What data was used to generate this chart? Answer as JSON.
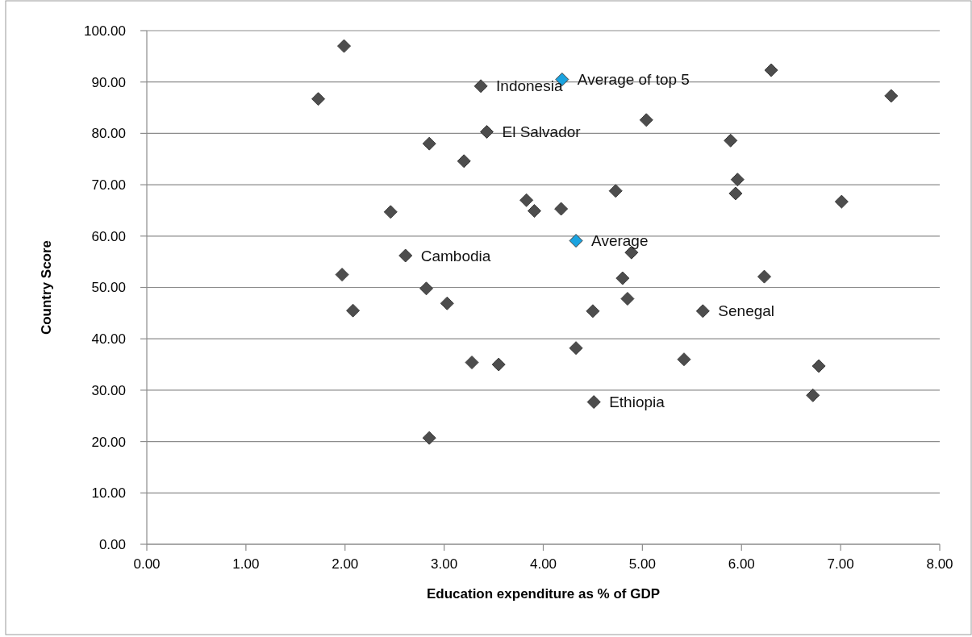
{
  "chart_data": {
    "type": "scatter",
    "xlabel": "Education expenditure as % of GDP",
    "ylabel": "Country Score",
    "xlim": [
      0,
      8
    ],
    "ylim": [
      0,
      100
    ],
    "xticks": [
      {
        "value": 0,
        "label": "0.00"
      },
      {
        "value": 1,
        "label": "1.00"
      },
      {
        "value": 2,
        "label": "2.00"
      },
      {
        "value": 3,
        "label": "3.00"
      },
      {
        "value": 4,
        "label": "4.00"
      },
      {
        "value": 5,
        "label": "5.00"
      },
      {
        "value": 6,
        "label": "6.00"
      },
      {
        "value": 7,
        "label": "7.00"
      },
      {
        "value": 8,
        "label": "8.00"
      }
    ],
    "yticks": [
      {
        "value": 0,
        "label": "0.00"
      },
      {
        "value": 10,
        "label": "10.00"
      },
      {
        "value": 20,
        "label": "20.00"
      },
      {
        "value": 30,
        "label": "30.00"
      },
      {
        "value": 40,
        "label": "40.00"
      },
      {
        "value": 50,
        "label": "50.00"
      },
      {
        "value": 60,
        "label": "60.00"
      },
      {
        "value": 70,
        "label": "70.00"
      },
      {
        "value": 80,
        "label": "80.00"
      },
      {
        "value": 90,
        "label": "90.00"
      },
      {
        "value": 100,
        "label": "100.00"
      }
    ],
    "grid": "y",
    "marker": "diamond",
    "series": [
      {
        "color": "#4d4d4d",
        "x": [
          1.73,
          1.99,
          1.97,
          2.08,
          2.46,
          2.61,
          2.85,
          2.82,
          2.85,
          3.03,
          3.2,
          3.28,
          3.37,
          3.43,
          3.55,
          3.83,
          3.91,
          4.18,
          4.33,
          4.5,
          4.51,
          4.73,
          4.8,
          4.85,
          4.89,
          5.04,
          5.42,
          5.61,
          5.89,
          5.96,
          5.94,
          6.23,
          6.3,
          6.72,
          6.78,
          7.01,
          7.51
        ],
        "values": [
          86.7,
          97.0,
          52.5,
          45.5,
          64.7,
          56.2,
          78.0,
          49.8,
          20.7,
          46.9,
          74.6,
          35.4,
          89.2,
          80.3,
          35.0,
          67.0,
          64.9,
          65.3,
          38.2,
          45.4,
          27.7,
          68.8,
          51.8,
          47.8,
          56.8,
          82.6,
          36.0,
          45.4,
          78.6,
          71.0,
          68.3,
          52.1,
          92.3,
          29.0,
          34.7,
          66.7,
          87.3
        ]
      },
      {
        "color": "#1aa3e0",
        "x": [
          4.19,
          4.33
        ],
        "values": [
          90.5,
          59.1
        ]
      }
    ],
    "annotations": [
      {
        "text": "Average of top 5",
        "x": 4.19,
        "y": 90.5
      },
      {
        "text": "Indonesia",
        "x": 3.37,
        "y": 89.2
      },
      {
        "text": "El Salvador",
        "x": 3.43,
        "y": 80.3
      },
      {
        "text": "Average",
        "x": 4.33,
        "y": 59.1
      },
      {
        "text": "Cambodia",
        "x": 2.61,
        "y": 56.2
      },
      {
        "text": "Senegal",
        "x": 5.61,
        "y": 45.4
      },
      {
        "text": "Ethiopia",
        "x": 4.51,
        "y": 27.7
      }
    ]
  }
}
